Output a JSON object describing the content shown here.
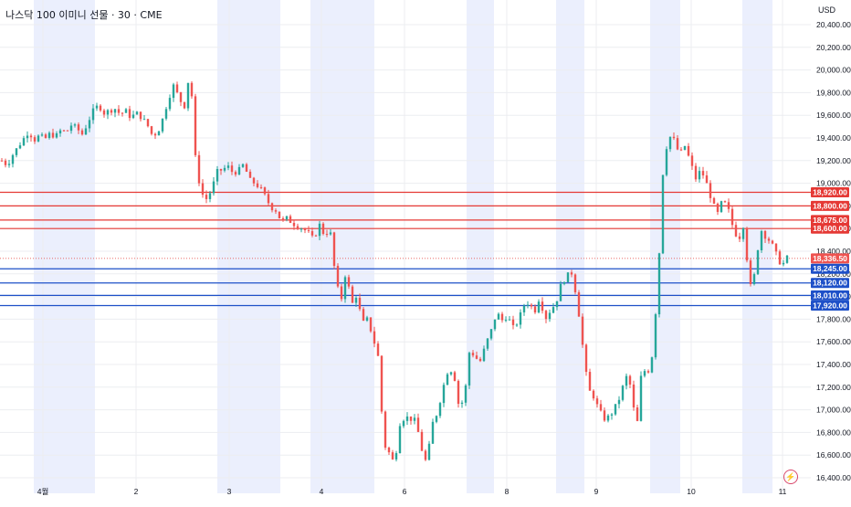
{
  "header": {
    "title": "나스닥 100 이미니 선물 · 30 · CME",
    "currency": "USD"
  },
  "colors": {
    "up": "#26a69a",
    "down": "#ef5350",
    "resistance": "#e53935",
    "support": "#1e50c8",
    "session_band": "#ebeffd",
    "grid": "#ecedf0",
    "text": "#131722"
  },
  "icons": {
    "alert": "lightning-icon"
  },
  "chart_data": {
    "type": "candlestick",
    "y_ticks": [
      "20,400.00",
      "20,200.00",
      "20,000.00",
      "19,800.00",
      "19,600.00",
      "19,400.00",
      "19,200.00",
      "19,000.00",
      "18,800.00",
      "18,600.00",
      "18,400.00",
      "18,200.00",
      "18,000.00",
      "17,800.00",
      "17,600.00",
      "17,400.00",
      "17,200.00",
      "17,000.00",
      "16,800.00",
      "16,600.00",
      "16,400.00"
    ],
    "x_ticks": [
      "4월",
      "2",
      "3",
      "4",
      "6",
      "8",
      "9",
      "10",
      "11"
    ],
    "resistance_levels": [
      {
        "value": 18920,
        "label": "18,920.00"
      },
      {
        "value": 18800,
        "label": "18,800.00"
      },
      {
        "value": 18675,
        "label": "18,675.00"
      },
      {
        "value": 18600,
        "label": "18,600.00"
      }
    ],
    "support_levels": [
      {
        "value": 18245,
        "label": "18,245.00"
      },
      {
        "value": 18120,
        "label": "18,120.00"
      },
      {
        "value": 18010,
        "label": "18,010.00"
      },
      {
        "value": 17920,
        "label": "17,920.00"
      }
    ],
    "last_price": {
      "value": 18336.5,
      "label": "18,336.50"
    },
    "path": [
      19200,
      19160,
      19250,
      19320,
      19390,
      19460,
      19380,
      19420,
      19390,
      19440,
      19410,
      19470,
      19450,
      19520,
      19480,
      19430,
      19540,
      19640,
      19690,
      19620,
      19640,
      19660,
      19610,
      19640,
      19580,
      19620,
      19580,
      19520,
      19420,
      19450,
      19580,
      19750,
      19870,
      19740,
      19680,
      20020,
      19220,
      18920,
      18860,
      18940,
      19100,
      19120,
      19150,
      19090,
      19110,
      19170,
      19030,
      19000,
      18960,
      18880,
      18790,
      18760,
      18660,
      18690,
      18650,
      18620,
      18600,
      18560,
      18500,
      18640,
      18540,
      18600,
      18180,
      17940,
      18240,
      17920,
      18020,
      17760,
      17800,
      17640,
      17460,
      16700,
      16620,
      16520,
      16880,
      16940,
      16920,
      16900,
      16660,
      16520,
      16870,
      16980,
      17190,
      17360,
      17340,
      17020,
      17100,
      17540,
      17460,
      17430,
      17580,
      17700,
      17860,
      17790,
      17830,
      17720,
      17780,
      17920,
      17950,
      17860,
      18000,
      17800,
      17880,
      17940,
      18110,
      18180,
      18210,
      17960,
      17560,
      17180,
      17120,
      17000,
      16920,
      16940,
      17020,
      17120,
      17300,
      17200,
      16800,
      17380,
      17310,
      17500,
      18150,
      19180,
      19420,
      19380,
      19250,
      19330,
      19190,
      19040,
      19120,
      19000,
      18850,
      18720,
      18850,
      18780,
      18600,
      18500,
      18650,
      18060,
      18200,
      18600,
      18530,
      18480,
      18370,
      18270,
      18340
    ]
  }
}
